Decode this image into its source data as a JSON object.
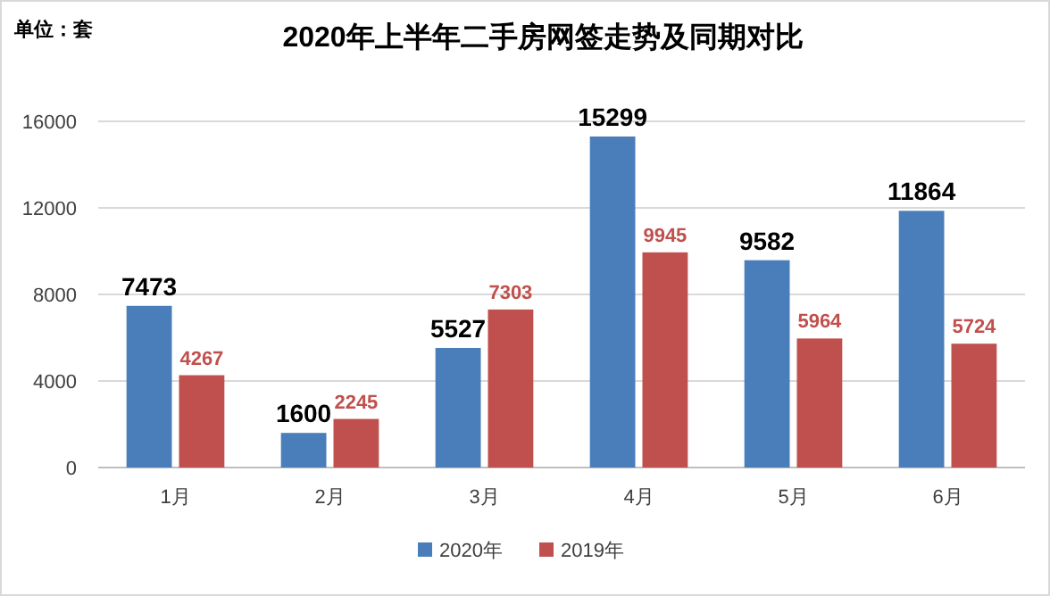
{
  "chart_data": {
    "type": "bar",
    "title": "2020年上半年二手房网签走势及同期对比",
    "annotations": [
      "单位：套"
    ],
    "categories": [
      "1月",
      "2月",
      "3月",
      "4月",
      "5月",
      "6月"
    ],
    "series": [
      {
        "name": "2020年",
        "color": "#4a7ebb",
        "values": [
          7473,
          1600,
          5527,
          15299,
          9582,
          11864
        ]
      },
      {
        "name": "2019年",
        "color": "#c0504d",
        "values": [
          4267,
          2245,
          7303,
          9945,
          5964,
          5724
        ]
      }
    ],
    "ylim": [
      0,
      16000
    ],
    "yticks": [
      0,
      4000,
      8000,
      12000,
      16000
    ],
    "grid": "y",
    "legend": "bottom",
    "data_labels": true
  }
}
